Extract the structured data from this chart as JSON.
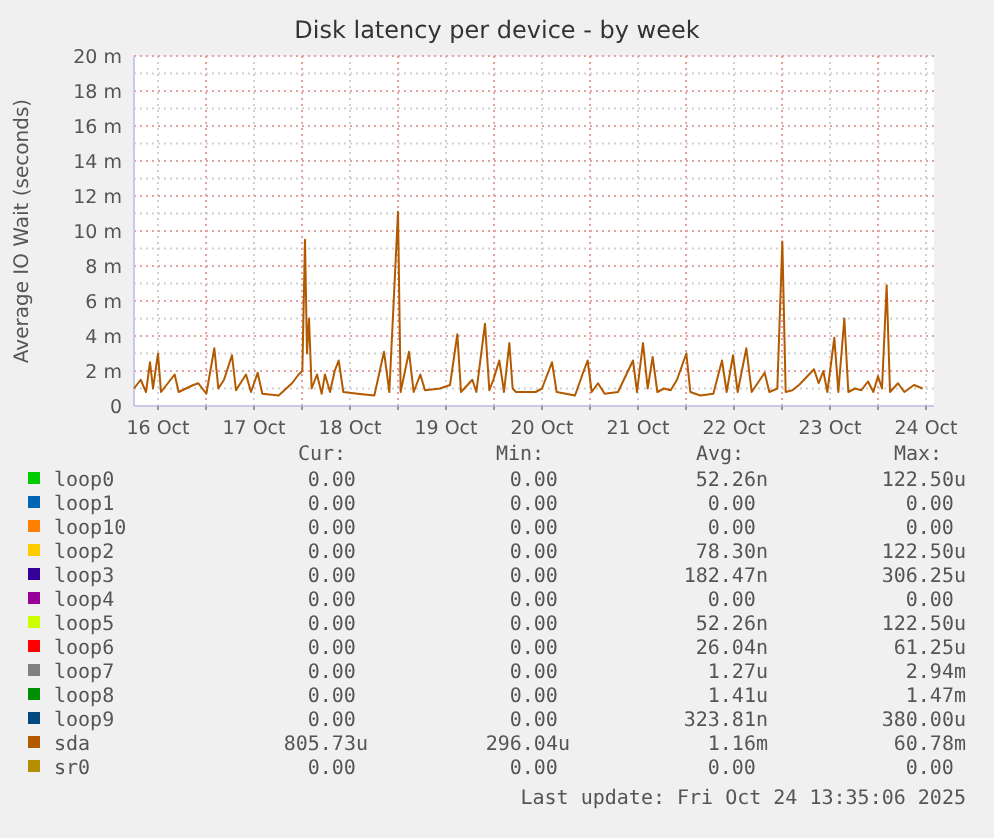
{
  "chart_data": {
    "type": "line",
    "title": "Disk latency per device - by week",
    "ylabel": "Average IO Wait (seconds)",
    "xlim": [
      "2025-10-16T06:00",
      "2025-10-24T14:00"
    ],
    "xticks": [
      {
        "value": "2025-10-16T12:00",
        "label": "16 Oct"
      },
      {
        "value": "2025-10-17T00:00",
        "label": null
      },
      {
        "value": "2025-10-17T12:00",
        "label": "17 Oct"
      },
      {
        "value": "2025-10-18T00:00",
        "label": null
      },
      {
        "value": "2025-10-18T12:00",
        "label": "18 Oct"
      },
      {
        "value": "2025-10-19T00:00",
        "label": null
      },
      {
        "value": "2025-10-19T12:00",
        "label": "19 Oct"
      },
      {
        "value": "2025-10-20T00:00",
        "label": null
      },
      {
        "value": "2025-10-20T12:00",
        "label": "20 Oct"
      },
      {
        "value": "2025-10-21T00:00",
        "label": null
      },
      {
        "value": "2025-10-21T12:00",
        "label": "21 Oct"
      },
      {
        "value": "2025-10-22T00:00",
        "label": null
      },
      {
        "value": "2025-10-22T12:00",
        "label": "22 Oct"
      },
      {
        "value": "2025-10-23T00:00",
        "label": null
      },
      {
        "value": "2025-10-23T12:00",
        "label": "23 Oct"
      },
      {
        "value": "2025-10-24T00:00",
        "label": null
      },
      {
        "value": "2025-10-24T12:00",
        "label": "24 Oct"
      }
    ],
    "ylim": [
      0,
      20
    ],
    "yticks": [
      0,
      {
        "value": 1,
        "label": null
      },
      {
        "value": 2,
        "label": "2 m"
      },
      {
        "value": 3,
        "label": null
      },
      {
        "value": 4,
        "label": "4 m"
      },
      {
        "value": 5,
        "label": null
      },
      {
        "value": 6,
        "label": "6 m"
      },
      {
        "value": 7,
        "label": null
      },
      {
        "value": 8,
        "label": "8 m"
      },
      {
        "value": 9,
        "label": null
      },
      {
        "value": 10,
        "label": "10 m"
      },
      {
        "value": 11,
        "label": null
      },
      {
        "value": 12,
        "label": "12 m"
      },
      {
        "value": 13,
        "label": null
      },
      {
        "value": 14,
        "label": "14 m"
      },
      {
        "value": 15,
        "label": null
      },
      {
        "value": 16,
        "label": "16 m"
      },
      {
        "value": 17,
        "label": null
      },
      {
        "value": 18,
        "label": "18 m"
      },
      {
        "value": 19,
        "label": null
      },
      {
        "value": 20,
        "label": "20 m"
      }
    ],
    "grid": true,
    "legend": "bottom",
    "series": [
      {
        "name": "loop0",
        "color": "#00cc00"
      },
      {
        "name": "loop1",
        "color": "#0066b3"
      },
      {
        "name": "loop10",
        "color": "#ff8000"
      },
      {
        "name": "loop2",
        "color": "#ffcc00"
      },
      {
        "name": "loop3",
        "color": "#330099"
      },
      {
        "name": "loop4",
        "color": "#990099"
      },
      {
        "name": "loop5",
        "color": "#ccff00"
      },
      {
        "name": "loop6",
        "color": "#ff0000"
      },
      {
        "name": "loop7",
        "color": "#808080"
      },
      {
        "name": "loop8",
        "color": "#008f00"
      },
      {
        "name": "loop9",
        "color": "#00487d"
      },
      {
        "name": "sda",
        "color": "#b35a00",
        "x": [
          "2025-10-16T06:00",
          "2025-10-16T07:40",
          "2025-10-16T09:00",
          "2025-10-16T10:00",
          "2025-10-16T10:45",
          "2025-10-16T12:00",
          "2025-10-16T12:45",
          "2025-10-16T16:10",
          "2025-10-16T17:10",
          "2025-10-16T20:50",
          "2025-10-16T22:05",
          "2025-10-17T00:05",
          "2025-10-17T02:05",
          "2025-10-17T03:05",
          "2025-10-17T04:30",
          "2025-10-17T06:30",
          "2025-10-17T07:30",
          "2025-10-17T10:00",
          "2025-10-17T11:15",
          "2025-10-17T12:55",
          "2025-10-17T14:05",
          "2025-10-17T18:10",
          "2025-10-17T21:30",
          "2025-10-17T23:10",
          "2025-10-18T00:05",
          "2025-10-18T00:45",
          "2025-10-18T01:15",
          "2025-10-18T01:45",
          "2025-10-18T02:25",
          "2025-10-18T03:45",
          "2025-10-18T04:55",
          "2025-10-18T05:45",
          "2025-10-18T07:00",
          "2025-10-18T08:10",
          "2025-10-18T09:10",
          "2025-10-18T10:20",
          "2025-10-18T13:55",
          "2025-10-18T18:05",
          "2025-10-18T20:30",
          "2025-10-18T21:50",
          "2025-10-19T00:00",
          "2025-10-19T00:40",
          "2025-10-19T02:45",
          "2025-10-19T03:55",
          "2025-10-19T05:35",
          "2025-10-19T06:45",
          "2025-10-19T10:30",
          "2025-10-19T13:00",
          "2025-10-19T14:50",
          "2025-10-19T15:45",
          "2025-10-19T18:35",
          "2025-10-19T19:35",
          "2025-10-19T21:45",
          "2025-10-19T22:50",
          "2025-10-19T23:50",
          "2025-10-20T01:20",
          "2025-10-20T02:30",
          "2025-10-20T03:50",
          "2025-10-20T04:40",
          "2025-10-20T05:30",
          "2025-10-20T10:25",
          "2025-10-20T12:00",
          "2025-10-20T14:30",
          "2025-10-20T15:40",
          "2025-10-20T20:15",
          "2025-10-20T22:25",
          "2025-10-20T23:25",
          "2025-10-21T00:25",
          "2025-10-21T02:00",
          "2025-10-21T03:40",
          "2025-10-21T07:00",
          "2025-10-21T10:45",
          "2025-10-21T11:45",
          "2025-10-21T13:15",
          "2025-10-21T14:25",
          "2025-10-21T15:40",
          "2025-10-21T16:50",
          "2025-10-21T18:30",
          "2025-10-21T20:10",
          "2025-10-21T21:45",
          "2025-10-22T00:05",
          "2025-10-22T01:05",
          "2025-10-22T03:35",
          "2025-10-22T06:50",
          "2025-10-22T09:00",
          "2025-10-22T10:10",
          "2025-10-22T11:45",
          "2025-10-22T12:55",
          "2025-10-22T15:05",
          "2025-10-22T16:25",
          "2025-10-22T19:40",
          "2025-10-22T20:50",
          "2025-10-22T22:50",
          "2025-10-23T00:05",
          "2025-10-23T00:55",
          "2025-10-23T02:35",
          "2025-10-23T04:15",
          "2025-10-23T08:00",
          "2025-10-23T09:10",
          "2025-10-23T10:20",
          "2025-10-23T11:20",
          "2025-10-23T13:05",
          "2025-10-23T14:05",
          "2025-10-23T15:35",
          "2025-10-23T16:35",
          "2025-10-23T18:15",
          "2025-10-23T19:50",
          "2025-10-23T21:30",
          "2025-10-23T22:50",
          "2025-10-24T00:00",
          "2025-10-24T01:00",
          "2025-10-24T02:10",
          "2025-10-24T03:00",
          "2025-10-24T05:00",
          "2025-10-24T06:35",
          "2025-10-24T09:00",
          "2025-10-24T11:10"
        ],
        "values": [
          1.0,
          1.5,
          0.8,
          2.5,
          1.0,
          3.0,
          0.8,
          1.8,
          0.8,
          1.2,
          1.3,
          0.7,
          3.3,
          1.0,
          1.5,
          2.9,
          0.9,
          1.8,
          0.8,
          1.9,
          0.7,
          0.6,
          1.3,
          1.8,
          2.0,
          9.5,
          3.0,
          5.0,
          1.0,
          1.8,
          0.7,
          1.8,
          0.8,
          2.0,
          2.6,
          0.8,
          0.7,
          0.6,
          3.1,
          0.8,
          11.1,
          0.8,
          3.1,
          0.8,
          1.8,
          0.9,
          1.0,
          1.2,
          4.1,
          0.8,
          1.5,
          0.8,
          4.7,
          0.9,
          1.5,
          2.6,
          0.8,
          3.6,
          1.0,
          0.8,
          0.8,
          1.0,
          2.5,
          0.8,
          0.6,
          2.0,
          2.6,
          0.8,
          1.3,
          0.7,
          0.8,
          2.6,
          0.8,
          3.6,
          1.0,
          2.8,
          0.8,
          1.0,
          0.9,
          1.5,
          3.0,
          0.8,
          0.6,
          0.7,
          2.6,
          0.8,
          2.9,
          0.8,
          3.3,
          0.8,
          1.9,
          0.8,
          1.0,
          9.4,
          0.8,
          0.9,
          1.2,
          2.1,
          1.3,
          2.0,
          0.8,
          3.9,
          0.8,
          5.0,
          0.8,
          1.0,
          0.9,
          1.4,
          0.8,
          1.7,
          1.0,
          6.9,
          0.8,
          1.3,
          0.8,
          1.2,
          1.0
        ]
      },
      {
        "name": "sr0",
        "color": "#b38f00"
      }
    ],
    "annotations": [
      "Cur:",
      "Min:",
      "Avg:",
      "Max:",
      "0.00",
      "0.00",
      "52.26n",
      "122.50u",
      "0.00",
      "0.00",
      "0.00",
      "0.00",
      "0.00",
      "0.00",
      "0.00",
      "0.00",
      "0.00",
      "0.00",
      "78.30n",
      "122.50u",
      "0.00",
      "0.00",
      "182.47n",
      "306.25u",
      "0.00",
      "0.00",
      "0.00",
      "0.00",
      "0.00",
      "0.00",
      "52.26n",
      "122.50u",
      "0.00",
      "0.00",
      "26.04n",
      "61.25u",
      "0.00",
      "0.00",
      "1.27u",
      "2.94m",
      "0.00",
      "0.00",
      "1.41u",
      "1.47m",
      "0.00",
      "0.00",
      "323.81n",
      "380.00u",
      "805.73u",
      "296.04u",
      "1.16m",
      "60.78m",
      "0.00",
      "0.00",
      "0.00",
      "0.00",
      "Last update: Fri Oct 24 13:35:06 2025"
    ]
  }
}
